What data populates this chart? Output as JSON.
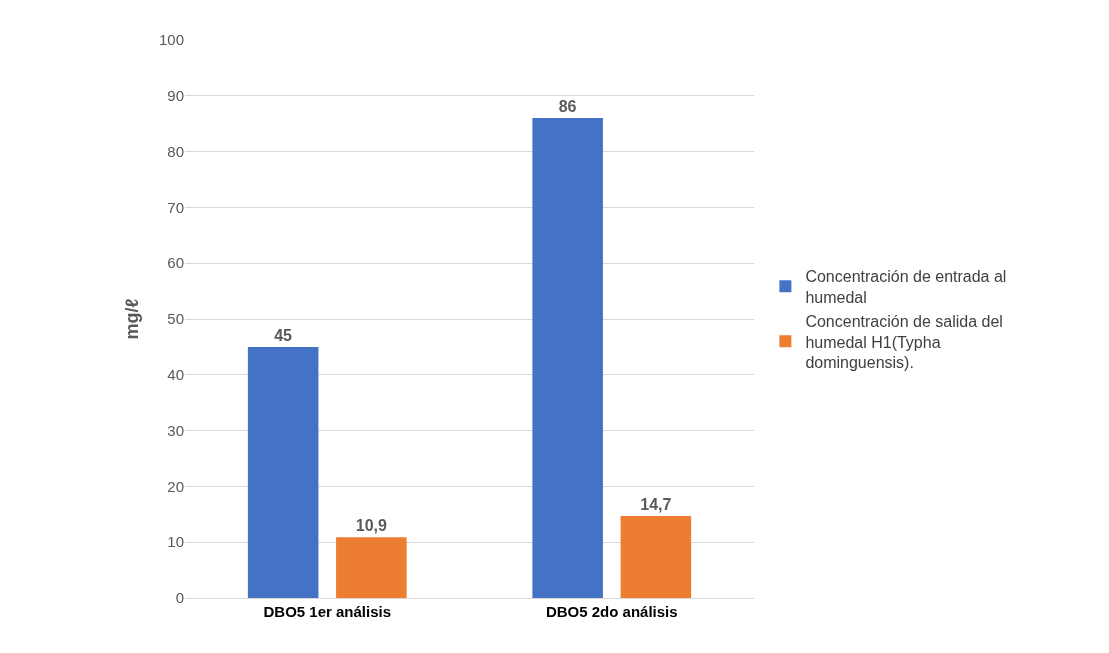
{
  "chart_data": {
    "type": "bar",
    "ylabel": "mg/ℓ",
    "categories": [
      "DBO5 1er análisis",
      "DBO5 2do análisis"
    ],
    "series": [
      {
        "name": "Concentración de entrada al humedal",
        "color": "#4472c4",
        "values": [
          45,
          86
        ],
        "value_labels": [
          "45",
          "86"
        ]
      },
      {
        "name": "Concentración de salida del humedal H1(Typha dominguensis).",
        "color": "#ed7d31",
        "values": [
          10.9,
          14.7
        ],
        "value_labels": [
          "10,9",
          "14,7"
        ]
      }
    ],
    "ylim": [
      0,
      100
    ],
    "yticks": [
      0,
      10,
      20,
      30,
      40,
      50,
      60,
      70,
      80,
      90,
      100
    ],
    "grid": "y",
    "legend": "right"
  }
}
